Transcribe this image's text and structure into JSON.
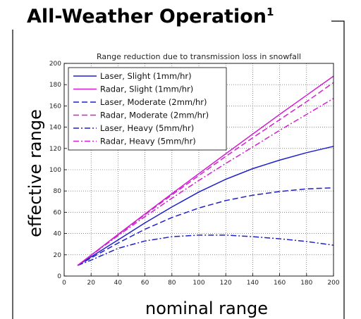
{
  "page": {
    "heading": "All-Weather Operation",
    "heading_sup": "1",
    "ylabel": "effective range",
    "xlabel": "nominal range"
  },
  "chart_data": {
    "type": "line",
    "title": "Range reduction due to transmission loss in snowfall",
    "xlabel": "nominal range",
    "ylabel": "effective range",
    "xlim": [
      0,
      200
    ],
    "ylim": [
      0,
      200
    ],
    "xticks": [
      0,
      20,
      40,
      60,
      80,
      100,
      120,
      140,
      160,
      180,
      200
    ],
    "xtick_labels": [
      "0",
      "20",
      "40",
      "60",
      "80",
      "100",
      "120",
      "140",
      "160",
      "180",
      "200"
    ],
    "yticks": [
      0,
      20,
      40,
      60,
      80,
      100,
      120,
      140,
      160,
      180,
      200
    ],
    "ytick_labels": [
      "0",
      "20",
      "40",
      "60",
      "80",
      "100",
      "120",
      "140",
      "160",
      "180",
      "200"
    ],
    "grid": true,
    "legend_position": "top-left",
    "x": [
      10,
      20,
      40,
      60,
      80,
      100,
      120,
      140,
      160,
      180,
      200
    ],
    "series": [
      {
        "name": "Laser, Slight (1mm/hr)",
        "color": "#1f1fcc",
        "dash": "solid",
        "values": [
          10,
          18,
          34,
          50,
          65,
          79,
          91,
          101,
          109,
          116,
          122
        ]
      },
      {
        "name": "Radar, Slight (1mm/hr)",
        "color": "#d020d0",
        "dash": "solid",
        "values": [
          10,
          19.7,
          39.2,
          58.4,
          77.5,
          96.3,
          115,
          133.5,
          152,
          170,
          188
        ]
      },
      {
        "name": "Laser, Moderate (2mm/hr)",
        "color": "#1f1fcc",
        "dash": "dashed",
        "values": [
          10,
          17,
          31,
          44,
          55,
          64,
          71,
          76,
          79.5,
          82,
          83
        ]
      },
      {
        "name": "Radar, Moderate (2mm/hr)",
        "color": "#d020d0",
        "dash": "dashed",
        "values": [
          10,
          19.6,
          38.8,
          57.7,
          76.3,
          94.5,
          112.5,
          130,
          147,
          164,
          182
        ]
      },
      {
        "name": "Laser, Heavy (5mm/hr)",
        "color": "#1f1fcc",
        "dash": "dashdot",
        "values": [
          10,
          15,
          26,
          33,
          37,
          38.5,
          38.5,
          37,
          35,
          32.5,
          29
        ]
      },
      {
        "name": "Radar, Heavy (5mm/hr)",
        "color": "#d020d0",
        "dash": "dashdot",
        "values": [
          10,
          19.4,
          38,
          55.9,
          73.2,
          89.9,
          105.9,
          121.3,
          137,
          152,
          167
        ]
      }
    ]
  }
}
